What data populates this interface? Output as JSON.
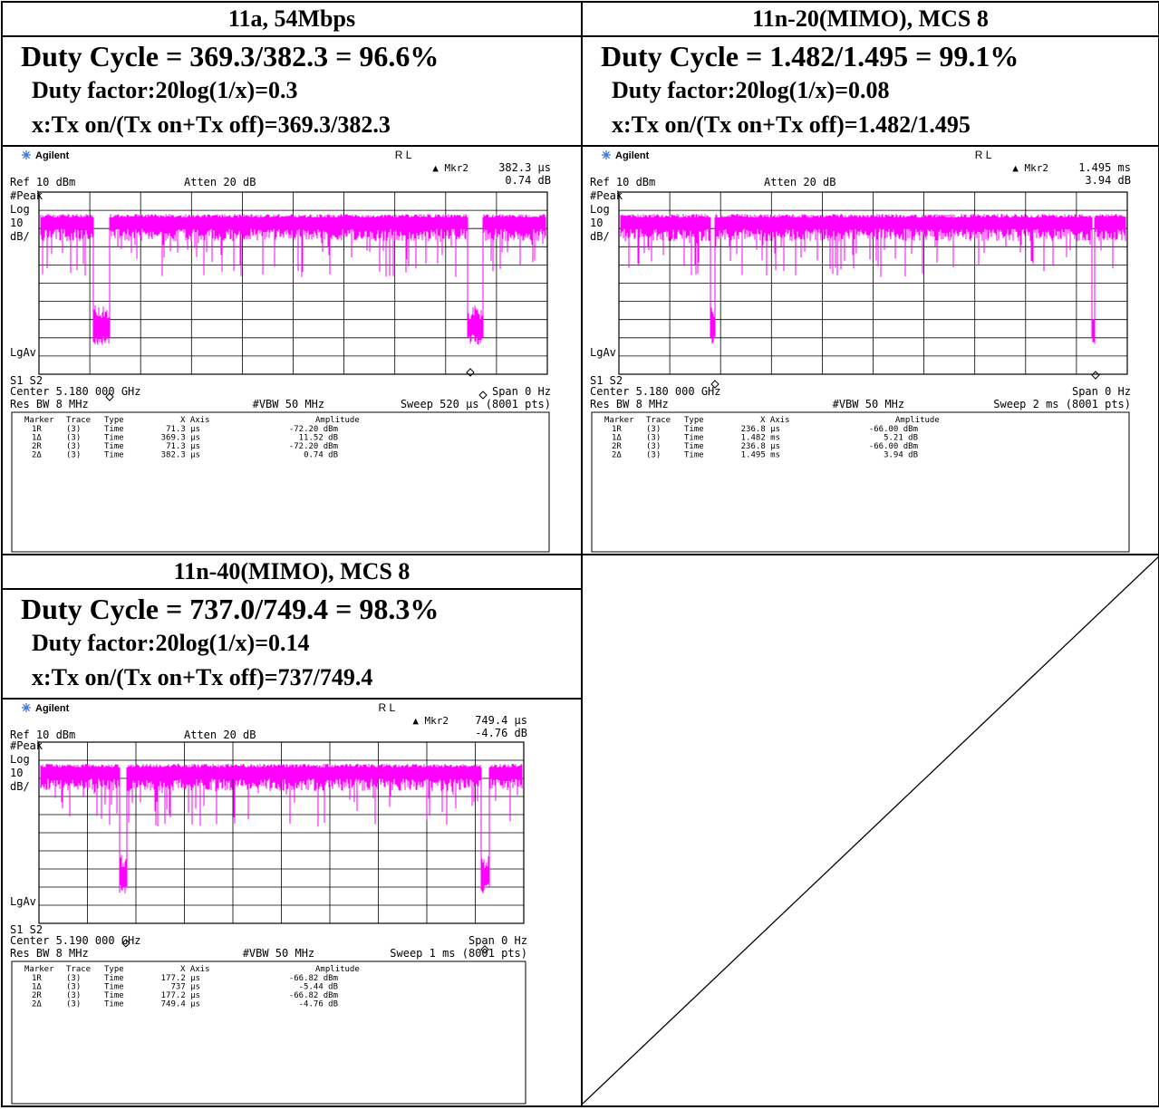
{
  "colors": {
    "trace": "#ff00ff",
    "grid": "#000000",
    "border": "#000000",
    "logo": "#3c78d8"
  },
  "panels": [
    {
      "id": "p1",
      "title": "11a, 54Mbps",
      "duty_cycle": "Duty Cycle = 369.3/382.3 = 96.6%",
      "duty_factor": "Duty factor:20log(1/x)=0.3",
      "x_def": "x:Tx on/(Tx on+Tx off)=369.3/382.3",
      "sa": {
        "brand": "Agilent",
        "rl": "R L",
        "mkr_label": "▲ Mkr2",
        "mkr_time": "382.3 µs",
        "mkr_amp": "0.74 dB",
        "ref": "Ref 10 dBm",
        "atten": "Atten 20 dB",
        "left_labels": [
          "#Peak",
          "Log",
          "10",
          "dB/"
        ],
        "lgav": "LgAv",
        "s1s2": "S1  S2",
        "center": "Center 5.180 000 GHz",
        "span": "Span 0 Hz",
        "resbw": "Res BW 8 MHz",
        "vbw": "#VBW 50 MHz",
        "sweep": "Sweep 520 µs (8001 pts)",
        "table_header": [
          "Marker",
          "Trace",
          "Type",
          "X Axis",
          "Amplitude"
        ],
        "table_rows": [
          [
            "1R",
            "(3)",
            "Time",
            "71.3 µs",
            "-72.20 dBm"
          ],
          [
            "1Δ",
            "(3)",
            "Time",
            "369.3 µs",
            "11.52 dB"
          ],
          [
            "2R",
            "(3)",
            "Time",
            "71.3 µs",
            "-72.20 dBm"
          ],
          [
            "2Δ",
            "(3)",
            "Time",
            "382.3 µs",
            "0.74 dB"
          ]
        ]
      }
    },
    {
      "id": "p2",
      "title": "11n-20(MIMO), MCS 8",
      "duty_cycle": "Duty Cycle = 1.482/1.495 = 99.1%",
      "duty_factor": "Duty factor:20log(1/x)=0.08",
      "x_def": "x:Tx on/(Tx on+Tx off)=1.482/1.495",
      "sa": {
        "brand": "Agilent",
        "rl": "R L",
        "mkr_label": "▲ Mkr2",
        "mkr_time": "1.495 ms",
        "mkr_amp": "3.94 dB",
        "ref": "Ref 10 dBm",
        "atten": "Atten 20 dB",
        "left_labels": [
          "#Peak",
          "Log",
          "10",
          "dB/"
        ],
        "lgav": "LgAv",
        "s1s2": "S1  S2",
        "center": "Center 5.180 000 GHz",
        "span": "Span 0 Hz",
        "resbw": "Res BW 8 MHz",
        "vbw": "#VBW 50 MHz",
        "sweep": "Sweep 2 ms (8001 pts)",
        "table_header": [
          "Marker",
          "Trace",
          "Type",
          "X Axis",
          "Amplitude"
        ],
        "table_rows": [
          [
            "1R",
            "(3)",
            "Time",
            "236.8 µs",
            "-66.00 dBm"
          ],
          [
            "1Δ",
            "(3)",
            "Time",
            "1.482 ms",
            "5.21 dB"
          ],
          [
            "2R",
            "(3)",
            "Time",
            "236.8 µs",
            "-66.00 dBm"
          ],
          [
            "2Δ",
            "(3)",
            "Time",
            "1.495 ms",
            "3.94 dB"
          ]
        ]
      }
    },
    {
      "id": "p3",
      "title": "11n-40(MIMO), MCS 8",
      "duty_cycle": "Duty Cycle = 737.0/749.4 = 98.3%",
      "duty_factor": "Duty factor:20log(1/x)=0.14",
      "x_def": "x:Tx on/(Tx on+Tx off)=737/749.4",
      "sa": {
        "brand": "Agilent",
        "rl": "R L",
        "mkr_label": "▲ Mkr2",
        "mkr_time": "749.4 µs",
        "mkr_amp": "-4.76 dB",
        "ref": "Ref 10 dBm",
        "atten": "Atten 20 dB",
        "left_labels": [
          "#Peak",
          "Log",
          "10",
          "dB/"
        ],
        "lgav": "LgAv",
        "s1s2": "S1  S2",
        "center": "Center 5.190 000 GHz",
        "span": "Span 0 Hz",
        "resbw": "Res BW 8 MHz",
        "vbw": "#VBW 50 MHz",
        "sweep": "Sweep 1 ms (8001 pts)",
        "table_header": [
          "Marker",
          "Trace",
          "Type",
          "X Axis",
          "Amplitude"
        ],
        "table_rows": [
          [
            "1R",
            "(3)",
            "Time",
            "177.2 µs",
            "-66.82 dBm"
          ],
          [
            "1Δ",
            "(3)",
            "Time",
            "737 µs",
            "-5.44 dB"
          ],
          [
            "2R",
            "(3)",
            "Time",
            "177.2 µs",
            "-66.82 dBm"
          ],
          [
            "2Δ",
            "(3)",
            "Time",
            "749.4 µs",
            "-4.76 dB"
          ]
        ]
      }
    }
  ]
}
